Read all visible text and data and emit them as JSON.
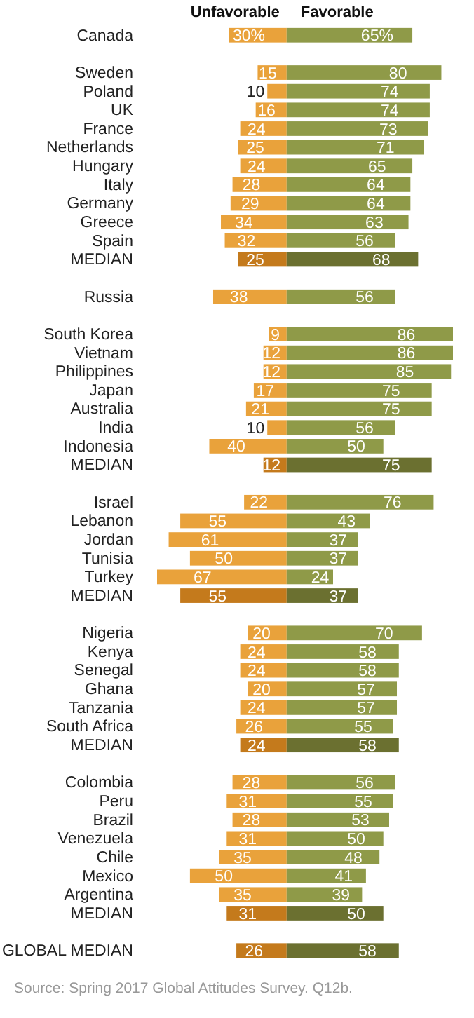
{
  "chart_data": [
    {
      "type": "bar",
      "orientation": "horizontal",
      "xlim": [
        67,
        0
      ],
      "tick_labels": "y",
      "categories": [
        "Canada",
        null,
        "Sweden",
        "Poland",
        "UK",
        "France",
        "Netherlands",
        "Hungary",
        "Italy",
        "Germany",
        "Greece",
        "Spain",
        "MEDIAN",
        null,
        "Russia",
        null,
        "South Korea",
        "Vietnam",
        "Philippines",
        "Japan",
        "Australia",
        "India",
        "Indonesia",
        "MEDIAN",
        null,
        "Israel",
        "Lebanon",
        "Jordan",
        "Tunisia",
        "Turkey",
        "MEDIAN",
        null,
        "Nigeria",
        "Kenya",
        "Senegal",
        "Ghana",
        "Tanzania",
        "South Africa",
        "MEDIAN",
        null,
        "Colombia",
        "Peru",
        "Brazil",
        "Venezuela",
        "Chile",
        "Mexico",
        "Argentina",
        "MEDIAN",
        null,
        "GLOBAL MEDIAN"
      ],
      "series": [
        {
          "name": "Unfavorable",
          "values": [
            30,
            null,
            15,
            10,
            16,
            24,
            25,
            24,
            28,
            29,
            34,
            32,
            25,
            null,
            38,
            null,
            9,
            12,
            12,
            17,
            21,
            10,
            40,
            12,
            null,
            22,
            55,
            61,
            50,
            67,
            55,
            null,
            20,
            24,
            24,
            20,
            24,
            26,
            24,
            null,
            28,
            31,
            28,
            31,
            35,
            50,
            35,
            31,
            null,
            26
          ],
          "value_labels": [
            "30%",
            null,
            "15",
            "10",
            "16",
            "24",
            "25",
            "24",
            "28",
            "29",
            "34",
            "32",
            "25",
            null,
            "38",
            null,
            "9",
            "12",
            "12",
            "17",
            "21",
            "10",
            "40",
            "12",
            null,
            "22",
            "55",
            "61",
            "50",
            "67",
            "55",
            null,
            "20",
            "24",
            "24",
            "20",
            "24",
            "26",
            "24",
            null,
            "28",
            "31",
            "28",
            "31",
            "35",
            "50",
            "35",
            "31",
            null,
            "26"
          ],
          "colors": [
            "#e9a23b",
            null,
            "#e9a23b",
            "#e9a23b",
            "#e9a23b",
            "#e9a23b",
            "#e9a23b",
            "#e9a23b",
            "#e9a23b",
            "#e9a23b",
            "#e9a23b",
            "#e9a23b",
            "#c47a1c",
            null,
            "#e9a23b",
            null,
            "#e9a23b",
            "#e9a23b",
            "#e9a23b",
            "#e9a23b",
            "#e9a23b",
            "#e9a23b",
            "#e9a23b",
            "#c47a1c",
            null,
            "#e9a23b",
            "#e9a23b",
            "#e9a23b",
            "#e9a23b",
            "#e9a23b",
            "#c47a1c",
            null,
            "#e9a23b",
            "#e9a23b",
            "#e9a23b",
            "#e9a23b",
            "#e9a23b",
            "#e9a23b",
            "#c47a1c",
            null,
            "#e9a23b",
            "#e9a23b",
            "#e9a23b",
            "#e9a23b",
            "#e9a23b",
            "#e9a23b",
            "#e9a23b",
            "#c47a1c",
            null,
            "#c47a1c"
          ]
        }
      ],
      "annotations": [
        "Source: Spring 2017 Global Attitudes Survey. Q12b."
      ]
    },
    {
      "type": "bar",
      "orientation": "horizontal",
      "xlim": [
        0,
        86
      ],
      "tick_labels": "y",
      "categories": [
        null,
        null,
        null,
        null,
        null,
        null,
        null,
        null,
        null,
        null,
        null,
        null,
        null,
        null,
        null,
        null,
        null,
        null,
        null,
        null,
        null,
        null,
        null,
        null,
        null,
        null,
        null,
        null,
        null,
        null,
        null,
        null,
        null,
        null,
        null,
        null,
        null,
        null,
        null,
        null,
        null,
        null,
        null,
        null,
        null,
        null,
        null,
        null,
        null,
        null
      ],
      "series": [
        {
          "name": "Favorable",
          "values": [
            65,
            null,
            80,
            74,
            74,
            73,
            71,
            65,
            64,
            64,
            63,
            56,
            68,
            null,
            56,
            null,
            86,
            86,
            85,
            75,
            75,
            56,
            50,
            75,
            null,
            76,
            43,
            37,
            37,
            24,
            37,
            null,
            70,
            58,
            58,
            57,
            57,
            55,
            58,
            null,
            56,
            55,
            53,
            50,
            48,
            41,
            39,
            50,
            null,
            58
          ],
          "value_labels": [
            "65%",
            null,
            "80",
            "74",
            "74",
            "73",
            "71",
            "65",
            "64",
            "64",
            "63",
            "56",
            "68",
            null,
            "56",
            null,
            "86",
            "86",
            "85",
            "75",
            "75",
            "56",
            "50",
            "75",
            null,
            "76",
            "43",
            "37",
            "37",
            "24",
            "37",
            null,
            "70",
            "58",
            "58",
            "57",
            "57",
            "55",
            "58",
            null,
            "56",
            "55",
            "53",
            "50",
            "48",
            "41",
            "39",
            "50",
            null,
            "58"
          ],
          "colors": [
            "#8f9a48",
            null,
            "#8f9a48",
            "#8f9a48",
            "#8f9a48",
            "#8f9a48",
            "#8f9a48",
            "#8f9a48",
            "#8f9a48",
            "#8f9a48",
            "#8f9a48",
            "#8f9a48",
            "#6b7030",
            null,
            "#8f9a48",
            null,
            "#8f9a48",
            "#8f9a48",
            "#8f9a48",
            "#8f9a48",
            "#8f9a48",
            "#8f9a48",
            "#8f9a48",
            "#6b7030",
            null,
            "#8f9a48",
            "#8f9a48",
            "#8f9a48",
            "#8f9a48",
            "#8f9a48",
            "#6b7030",
            null,
            "#8f9a48",
            "#8f9a48",
            "#8f9a48",
            "#8f9a48",
            "#8f9a48",
            "#8f9a48",
            "#6b7030",
            null,
            "#8f9a48",
            "#8f9a48",
            "#8f9a48",
            "#8f9a48",
            "#8f9a48",
            "#8f9a48",
            "#8f9a48",
            "#6b7030",
            null,
            "#6b7030"
          ]
        }
      ]
    }
  ]
}
